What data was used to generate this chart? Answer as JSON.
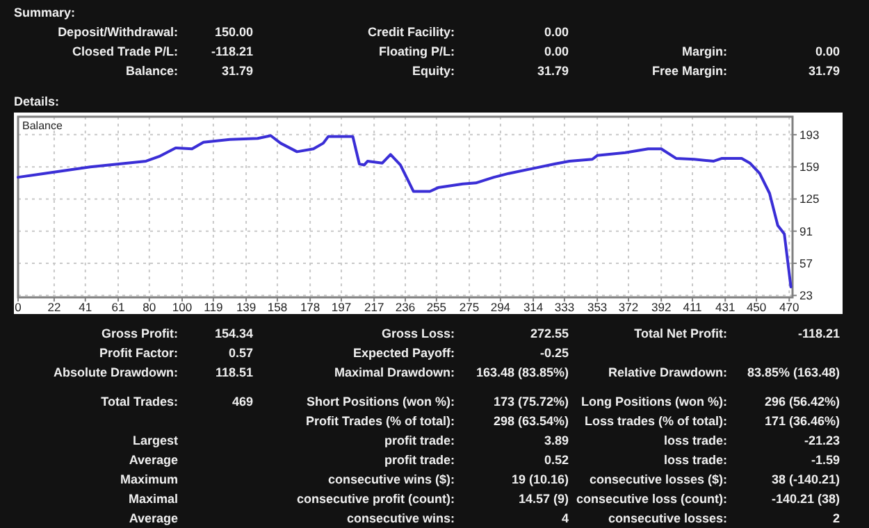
{
  "chart_data": {
    "type": "line",
    "title": "Balance",
    "x": [
      0,
      16,
      44,
      78,
      86,
      96,
      106,
      113,
      129,
      146,
      154,
      160,
      170,
      180,
      186,
      189,
      204,
      208,
      211,
      213,
      222,
      227,
      233,
      237,
      241,
      251,
      256,
      271,
      279,
      290,
      299,
      313,
      327,
      336,
      350,
      353,
      370,
      384,
      392,
      401,
      412,
      424,
      429,
      441,
      446,
      452,
      458,
      463,
      467,
      471
    ],
    "series": [
      {
        "color": "#3a2ed6",
        "values": [
          148,
          152,
          159,
          165,
          170,
          179,
          178,
          185,
          188,
          189,
          192,
          184,
          175,
          178,
          184,
          191,
          191,
          162,
          161,
          165,
          163,
          172,
          161,
          147,
          133,
          133,
          137,
          141,
          142,
          148,
          152,
          157,
          162,
          165,
          167,
          171,
          174,
          178,
          178,
          168,
          167,
          165,
          168,
          168,
          163,
          152,
          131,
          97,
          88,
          32
        ]
      }
    ],
    "xlim": [
      0,
      472
    ],
    "ylim": [
      21,
      212
    ],
    "xticks": [
      0,
      22,
      41,
      61,
      80,
      100,
      119,
      139,
      158,
      178,
      197,
      217,
      236,
      255,
      275,
      294,
      314,
      333,
      353,
      372,
      392,
      411,
      431,
      450,
      470
    ],
    "yticks": [
      23,
      57,
      91,
      125,
      159,
      193
    ],
    "grid": true,
    "line_style": "solid",
    "marker": "none",
    "annotations": [
      "Summary:",
      "Deposit/Withdrawal:",
      "150.00",
      "Credit Facility:",
      "0.00",
      "Closed Trade P/L:",
      "-118.21",
      "Floating P/L:",
      "0.00",
      "Margin:",
      "0.00",
      "Balance:",
      "31.79",
      "Equity:",
      "31.79",
      "Free Margin:",
      "31.79",
      "Details:",
      "Gross Profit:",
      "154.34",
      "Gross Loss:",
      "272.55",
      "Total Net Profit:",
      "-118.21",
      "Profit Factor:",
      "0.57",
      "Expected Payoff:",
      "-0.25",
      "Absolute Drawdown:",
      "118.51",
      "Maximal Drawdown:",
      "163.48 (83.85%)",
      "Relative Drawdown:",
      "83.85% (163.48)",
      "Total Trades:",
      "469",
      "Short Positions (won %):",
      "173 (75.72%)",
      "Long Positions (won %):",
      "296 (56.42%)",
      "Profit Trades (% of total):",
      "298 (63.54%)",
      "Loss trades (% of total):",
      "171 (36.46%)",
      "Largest",
      "profit trade:",
      "3.89",
      "loss trade:",
      "-21.23",
      "Average",
      "profit trade:",
      "0.52",
      "loss trade:",
      "-1.59",
      "Maximum",
      "consecutive wins ($):",
      "19 (10.16)",
      "consecutive losses ($):",
      "38 (-140.21)",
      "Maximal",
      "consecutive profit (count):",
      "14.57 (9)",
      "consecutive loss (count):",
      "-140.21 (38)",
      "Average",
      "consecutive wins:",
      "4",
      "consecutive losses:",
      "2"
    ]
  }
}
